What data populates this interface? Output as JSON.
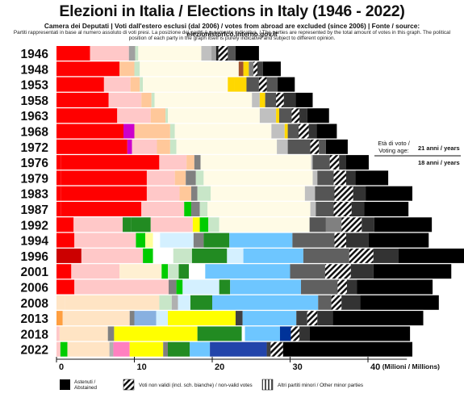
{
  "title": "Elezioni in Italia / Elections in Italy (1946 - 2022)",
  "subtitle": "Camera dei Deputati | Voti dall'estero esclusi (dal 2006) / votes from abroad are excluded (since 2006) | Fonte / source:  elezionistorico.interno.gov.it",
  "note": "Partiti rappresentati in base al numero assoluto di voti presi. La posizione dei partiti è puramente indicativa. / The parties are represented by the total amount of votes in this graph. The political position of each party in the graph itself is purely indicative and subject to different opinion.",
  "age_note": {
    "label_line1": "Età di voto /",
    "label_line2": "Voting age:",
    "value_1": "21 anni / years",
    "value_2": "18 anni / years"
  },
  "legend": {
    "abstained": "Astenuti / Abstained",
    "invalid": "Voti non validi (incl. sch. bianche) / non-valid votes",
    "minor": "Altri partiti minori / Other minor parties"
  },
  "colors": {
    "abstained": "#000000",
    "invalid": "hatch-black-white",
    "minor": "hatch-grey-white"
  },
  "chart_data": {
    "type": "bar",
    "orientation": "horizontal-stacked",
    "xlabel": "(Milioni / Millions)",
    "xlim": [
      0,
      50
    ],
    "xticks": [
      0,
      10,
      20,
      30,
      40
    ],
    "grid": false,
    "legend_position": "bottom",
    "categories": [
      "1946",
      "1948",
      "1953",
      "1958",
      "1963",
      "1968",
      "1972",
      "1976",
      "1979",
      "1983",
      "1987",
      "1992",
      "1994",
      "1996",
      "2001",
      "2006",
      "2008",
      "2013",
      "2018",
      "2022"
    ],
    "bars": [
      {
        "year": "1946",
        "segments": [
          [
            0,
            "#ff0000"
          ],
          [
            4.3,
            "#ff0000"
          ],
          [
            5.0,
            "#ffc8c8"
          ],
          [
            0.8,
            "#a0a0a0"
          ],
          [
            0.4,
            "#c8e6c8"
          ],
          [
            8.1,
            "#fffbe6"
          ],
          [
            1.3,
            "#c0c0c0"
          ],
          [
            0.6,
            "#a0a0a0"
          ],
          [
            0.3,
            "#1a1a1a"
          ],
          [
            1.2,
            "#hatch"
          ],
          [
            1.0,
            "#555555"
          ],
          [
            3.0,
            "#000000"
          ]
        ]
      },
      {
        "year": "1948",
        "segments": [
          [
            0,
            "#ff0000"
          ],
          [
            8.1,
            "#ff0000"
          ],
          [
            1.9,
            "#ffc89a"
          ],
          [
            0.7,
            "#c8e6c8"
          ],
          [
            12.7,
            "#fffbe6"
          ],
          [
            0.6,
            "#a0522d"
          ],
          [
            0.7,
            "#ffd700"
          ],
          [
            0.6,
            "#808080"
          ],
          [
            0.5,
            "#hatch"
          ],
          [
            0.7,
            "#404040"
          ],
          [
            2.3,
            "#000000"
          ]
        ]
      },
      {
        "year": "1953",
        "segments": [
          [
            0,
            "#ff0000"
          ],
          [
            6.1,
            "#ff0000"
          ],
          [
            3.4,
            "#ffc8c8"
          ],
          [
            1.2,
            "#ffc89a"
          ],
          [
            0.4,
            "#c8e6c8"
          ],
          [
            10.9,
            "#fffbe6"
          ],
          [
            0.8,
            "#ffd700"
          ],
          [
            1.6,
            "#ffd700"
          ],
          [
            1.6,
            "#555555"
          ],
          [
            1.0,
            "#hatch"
          ],
          [
            1.4,
            "#555555"
          ],
          [
            2.2,
            "#000000"
          ]
        ]
      },
      {
        "year": "1958",
        "segments": [
          [
            0,
            "#ff0000"
          ],
          [
            6.7,
            "#ff0000"
          ],
          [
            4.2,
            "#ffc8c8"
          ],
          [
            1.3,
            "#ffc89a"
          ],
          [
            0.4,
            "#c8e6c8"
          ],
          [
            12.5,
            "#fffbe6"
          ],
          [
            1.0,
            "#c0c0c0"
          ],
          [
            0.7,
            "#ffd700"
          ],
          [
            1.4,
            "#555555"
          ],
          [
            1.0,
            "#hatch"
          ],
          [
            1.5,
            "#333333"
          ],
          [
            2.2,
            "#000000"
          ]
        ]
      },
      {
        "year": "1963",
        "segments": [
          [
            0,
            "#ff0000"
          ],
          [
            7.8,
            "#ff0000"
          ],
          [
            4.3,
            "#ffc8c8"
          ],
          [
            1.9,
            "#ffc89a"
          ],
          [
            0.3,
            "#c8e6c8"
          ],
          [
            11.8,
            "#fffbe6"
          ],
          [
            2.1,
            "#c0c0c0"
          ],
          [
            0.4,
            "#ffd700"
          ],
          [
            1.6,
            "#555555"
          ],
          [
            1.0,
            "#hatch"
          ],
          [
            1.0,
            "#333333"
          ],
          [
            2.8,
            "#000000"
          ]
        ]
      },
      {
        "year": "1968",
        "segments": [
          [
            0,
            "#ff0000"
          ],
          [
            8.6,
            "#ff0000"
          ],
          [
            1.4,
            "#cc00cc"
          ],
          [
            4.6,
            "#ffc89a"
          ],
          [
            0.6,
            "#c8e6c8"
          ],
          [
            12.4,
            "#fffbe6"
          ],
          [
            1.7,
            "#c0c0c0"
          ],
          [
            0.4,
            "#ffd700"
          ],
          [
            1.4,
            "#555555"
          ],
          [
            1.3,
            "#hatch"
          ],
          [
            1.0,
            "#333333"
          ],
          [
            2.6,
            "#000000"
          ]
        ]
      },
      {
        "year": "1972",
        "segments": [
          [
            0,
            "#ff0000"
          ],
          [
            9.1,
            "#ff0000"
          ],
          [
            0.6,
            "#cc00cc"
          ],
          [
            3.2,
            "#ffc8c8"
          ],
          [
            1.7,
            "#ffc89a"
          ],
          [
            0.8,
            "#c8e6c8"
          ],
          [
            12.9,
            "#fffbe6"
          ],
          [
            1.4,
            "#c0c0c0"
          ],
          [
            2.9,
            "#555555"
          ],
          [
            1.1,
            "#hatch"
          ],
          [
            0.9,
            "#555555"
          ],
          [
            2.8,
            "#000000"
          ]
        ]
      },
      {
        "year": "1976",
        "segments": [
          [
            0,
            "#800000"
          ],
          [
            0.6,
            "#ff0000"
          ],
          [
            12.6,
            "#ff0000"
          ],
          [
            3.5,
            "#ffc8c8"
          ],
          [
            1.0,
            "#ffc89a"
          ],
          [
            0.8,
            "#808080"
          ],
          [
            14.2,
            "#fffbe6"
          ],
          [
            0.2,
            "#c0c0c0"
          ],
          [
            2.2,
            "#555555"
          ],
          [
            1.2,
            "#hatch"
          ],
          [
            0.9,
            "#333333"
          ],
          [
            2.9,
            "#000000"
          ]
        ]
      },
      {
        "year": "1979",
        "segments": [
          [
            0,
            "#800000"
          ],
          [
            0.6,
            "#ff0000"
          ],
          [
            11.0,
            "#ff0000"
          ],
          [
            3.6,
            "#ffc8c8"
          ],
          [
            1.4,
            "#ffc89a"
          ],
          [
            1.3,
            "#808080"
          ],
          [
            1.0,
            "#c8e6c8"
          ],
          [
            14.0,
            "#fffbe6"
          ],
          [
            0.6,
            "#c0c0c0"
          ],
          [
            2.1,
            "#555555"
          ],
          [
            1.6,
            "#hatch"
          ],
          [
            1.2,
            "#333333"
          ],
          [
            4.2,
            "#000000"
          ]
        ]
      },
      {
        "year": "1983",
        "segments": [
          [
            0,
            "#800000"
          ],
          [
            0.6,
            "#ff0000"
          ],
          [
            11.0,
            "#ff0000"
          ],
          [
            4.2,
            "#ffc8c8"
          ],
          [
            1.5,
            "#ffc89a"
          ],
          [
            0.8,
            "#808080"
          ],
          [
            1.7,
            "#c8e6c8"
          ],
          [
            12.1,
            "#fffbe6"
          ],
          [
            1.3,
            "#c0c0c0"
          ],
          [
            2.5,
            "#555555"
          ],
          [
            2.4,
            "#hatch"
          ],
          [
            1.6,
            "#333333"
          ],
          [
            6.0,
            "#000000"
          ]
        ]
      },
      {
        "year": "1987",
        "segments": [
          [
            0,
            "#800000"
          ],
          [
            0.6,
            "#ff0000"
          ],
          [
            10.3,
            "#ff0000"
          ],
          [
            5.5,
            "#ffc8c8"
          ],
          [
            0.9,
            "#00cc00"
          ],
          [
            1.1,
            "#808080"
          ],
          [
            1.0,
            "#c8e6c8"
          ],
          [
            13.2,
            "#fffbe6"
          ],
          [
            0.7,
            "#c0c0c0"
          ],
          [
            2.3,
            "#555555"
          ],
          [
            2.3,
            "#hatch"
          ],
          [
            1.6,
            "#333333"
          ],
          [
            5.7,
            "#000000"
          ]
        ]
      },
      {
        "year": "1992",
        "segments": [
          [
            0,
            "#800000"
          ],
          [
            2.2,
            "#ff0000"
          ],
          [
            6.3,
            "#ffc8c8"
          ],
          [
            1.1,
            "#228b22"
          ],
          [
            2.5,
            "#228b22"
          ],
          [
            5.4,
            "#ffc8c8"
          ],
          [
            0.9,
            "#ffff00"
          ],
          [
            1.1,
            "#00cc00"
          ],
          [
            1.4,
            "#c8e6c8"
          ],
          [
            11.6,
            "#fffbe6"
          ],
          [
            2.1,
            "#555555"
          ],
          [
            2.0,
            "#808080"
          ],
          [
            2.6,
            "#hatch"
          ],
          [
            1.6,
            "#333333"
          ],
          [
            7.4,
            "#000000"
          ]
        ]
      },
      {
        "year": "1994",
        "segments": [
          [
            0,
            "#800000"
          ],
          [
            2.3,
            "#ff0000"
          ],
          [
            7.9,
            "#ffc8c8"
          ],
          [
            1.2,
            "#00cc00"
          ],
          [
            1.0,
            "#ffff99"
          ],
          [
            0.9,
            "#ffffff"
          ],
          [
            4.3,
            "#d4f0ff"
          ],
          [
            1.3,
            "#808080"
          ],
          [
            3.3,
            "#228b22"
          ],
          [
            8.1,
            "#6ec6ff"
          ],
          [
            5.4,
            "#606060"
          ],
          [
            1.5,
            "#hatch"
          ],
          [
            2.9,
            "#333333"
          ],
          [
            7.7,
            "#000000"
          ]
        ]
      },
      {
        "year": "1996",
        "segments": [
          [
            0,
            "#800000"
          ],
          [
            3.2,
            "#cc0000"
          ],
          [
            7.9,
            "#ffc8c8"
          ],
          [
            1.3,
            "#00cc00"
          ],
          [
            2.6,
            "#ffffff"
          ],
          [
            2.4,
            "#c8e6c8"
          ],
          [
            4.5,
            "#228b22"
          ],
          [
            2.1,
            "#d4f0ff"
          ],
          [
            7.7,
            "#6ec6ff"
          ],
          [
            5.9,
            "#606060"
          ],
          [
            3.1,
            "#hatch"
          ],
          [
            3.2,
            "#333333"
          ],
          [
            8.8,
            "#000000"
          ]
        ]
      },
      {
        "year": "2001",
        "segments": [
          [
            0,
            "#800000"
          ],
          [
            1.9,
            "#ff0000"
          ],
          [
            6.2,
            "#ffc8c8"
          ],
          [
            5.4,
            "#fff0d2"
          ],
          [
            0.8,
            "#00cc00"
          ],
          [
            1.4,
            "#c8e6c8"
          ],
          [
            1.3,
            "#228b22"
          ],
          [
            2.1,
            "#ffffff"
          ],
          [
            10.9,
            "#6ec6ff"
          ],
          [
            4.5,
            "#606060"
          ],
          [
            3.3,
            "#hatch"
          ],
          [
            2.9,
            "#333333"
          ],
          [
            10.0,
            "#000000"
          ]
        ]
      },
      {
        "year": "2006",
        "segments": [
          [
            0,
            "#800000"
          ],
          [
            2.3,
            "#ff0000"
          ],
          [
            12.1,
            "#ffc8c8"
          ],
          [
            1.0,
            "#808080"
          ],
          [
            0.8,
            "#00cc00"
          ],
          [
            4.7,
            "#d4f0ff"
          ],
          [
            1.4,
            "#228b22"
          ],
          [
            9.1,
            "#6ec6ff"
          ],
          [
            4.7,
            "#606060"
          ],
          [
            1.2,
            "#hatch"
          ],
          [
            1.3,
            "#333333"
          ],
          [
            9.7,
            "#000000"
          ]
        ]
      },
      {
        "year": "2008",
        "segments": [
          [
            0,
            "#ff9f40"
          ],
          [
            1.1,
            "#ffe4c4"
          ],
          [
            12.1,
            "#ffe4c4"
          ],
          [
            1.6,
            "#c8e6c8"
          ],
          [
            0.8,
            "#b0b0b0"
          ],
          [
            1.6,
            "#d4f0ff"
          ],
          [
            2.8,
            "#228b22"
          ],
          [
            13.6,
            "#6ec6ff"
          ],
          [
            1.7,
            "#606060"
          ],
          [
            1.3,
            "#hatch"
          ],
          [
            2.4,
            "#333333"
          ],
          [
            10.1,
            "#000000"
          ]
        ]
      },
      {
        "year": "2013",
        "segments": [
          [
            0,
            "#cc0000"
          ],
          [
            0.8,
            "#ff9f40"
          ],
          [
            8.6,
            "#ffe4c4"
          ],
          [
            0.6,
            "#808080"
          ],
          [
            2.8,
            "#88b0e0"
          ],
          [
            1.5,
            "#d4f0ff"
          ],
          [
            8.7,
            "#ffff00"
          ],
          [
            0.9,
            "#404040"
          ],
          [
            6.9,
            "#6ec6ff"
          ],
          [
            1.4,
            "#404040"
          ],
          [
            1.3,
            "#hatch"
          ],
          [
            2.0,
            "#333333"
          ],
          [
            11.6,
            "#000000"
          ]
        ]
      },
      {
        "year": "2018",
        "segments": [
          [
            0,
            "#cc0000"
          ],
          [
            0.4,
            "#ffc8c8"
          ],
          [
            6.2,
            "#ffe4c4"
          ],
          [
            0.8,
            "#808080"
          ],
          [
            10.7,
            "#ffff00"
          ],
          [
            5.7,
            "#228b22"
          ],
          [
            0.4,
            "#ffffff"
          ],
          [
            4.5,
            "#6ec6ff"
          ],
          [
            1.4,
            "#003399"
          ],
          [
            1.1,
            "#hatch"
          ],
          [
            1.3,
            "#333333"
          ],
          [
            12.9,
            "#000000"
          ]
        ]
      },
      {
        "year": "2022",
        "segments": [
          [
            0,
            "#cc0000"
          ],
          [
            0.5,
            "#ffc8c8"
          ],
          [
            0.9,
            "#00cc00"
          ],
          [
            5.4,
            "#ffe4c4"
          ],
          [
            0.5,
            "#b0b0b0"
          ],
          [
            2.1,
            "#ff80c0"
          ],
          [
            4.3,
            "#ffff00"
          ],
          [
            0.6,
            "#808080"
          ],
          [
            2.8,
            "#228b22"
          ],
          [
            2.6,
            "#6ec6ff"
          ],
          [
            7.3,
            "#2244aa"
          ],
          [
            0.5,
            "#404040"
          ],
          [
            1.6,
            "#hatch"
          ],
          [
            16.6,
            "#000000"
          ]
        ]
      }
    ]
  }
}
